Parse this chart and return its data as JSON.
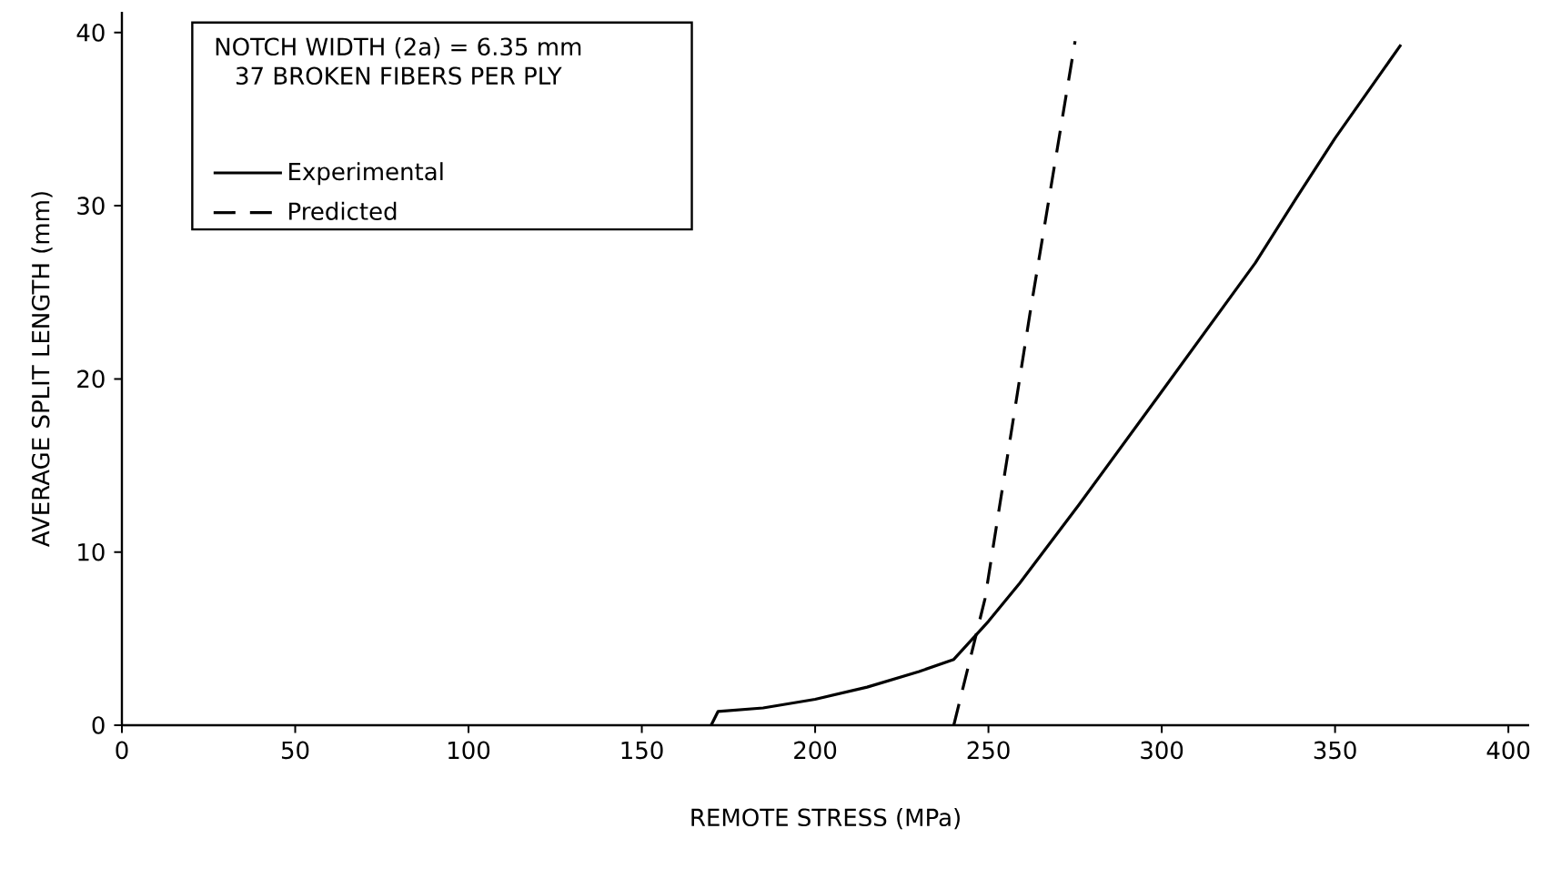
{
  "chart_data": {
    "type": "line",
    "xlabel": "REMOTE STRESS (MPa)",
    "ylabel": "AVERAGE SPLIT LENGTH (mm)",
    "annotations": [
      "NOTCH WIDTH (2a) = 6.35 mm",
      "37 BROKEN FIBERS PER PLY"
    ],
    "xlim": [
      0,
      406
    ],
    "ylim": [
      0,
      41.2
    ],
    "xticks": [
      0,
      50,
      100,
      150,
      200,
      250,
      300,
      350,
      400
    ],
    "yticks": [
      0,
      10,
      20,
      30,
      40
    ],
    "legend": "top left",
    "grid": false,
    "series": [
      {
        "name": "Experimental",
        "color": "#000000",
        "line_style": "solid",
        "x": [
          170,
          172,
          185,
          200,
          215,
          230,
          240,
          250,
          259,
          276,
          299,
          327,
          339,
          350,
          369
        ],
        "values": [
          0,
          0.8,
          1.0,
          1.5,
          2.2,
          3.1,
          3.8,
          6.0,
          8.2,
          12.7,
          19.0,
          26.7,
          30.5,
          33.9,
          39.3
        ]
      },
      {
        "name": "Predicted",
        "color": "#000000",
        "line_style": "dashed",
        "x": [
          240,
          249,
          262,
          275
        ],
        "values": [
          0,
          7.3,
          23.8,
          39.5
        ]
      }
    ]
  }
}
